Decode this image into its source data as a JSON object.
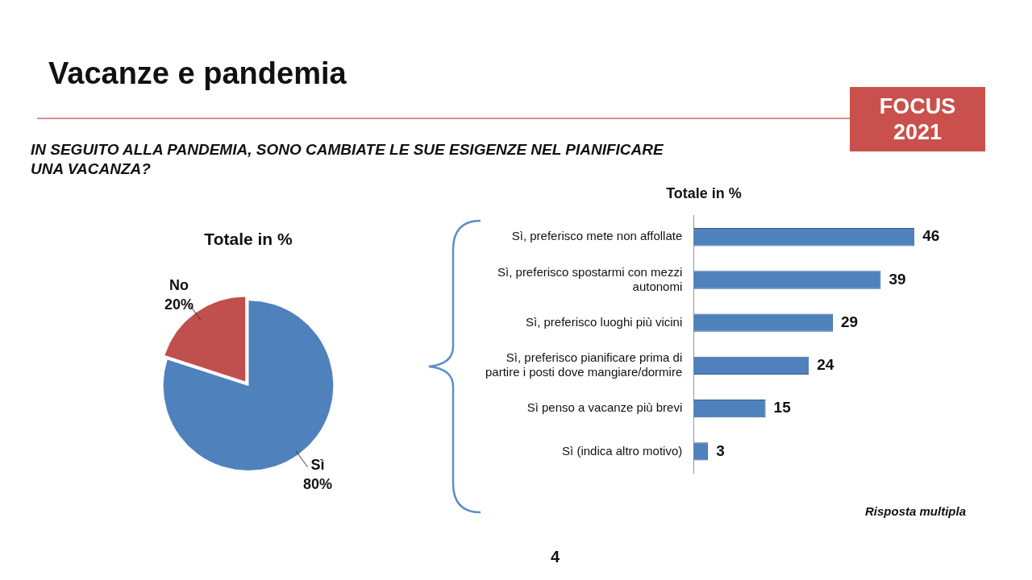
{
  "chart_data": [
    {
      "type": "other",
      "title": "Vacanze e pandemia",
      "subtitle": "IN SEGUITO ALLA PANDEMIA, SONO CAMBIATE LE SUE ESIGENZE NEL PIANIFICARE UNA VACANZA?",
      "annotations": [
        "FOCUS 2021",
        "4"
      ]
    },
    {
      "type": "pie",
      "title": "Totale in %",
      "categories": [
        "No",
        "Sì"
      ],
      "values": [
        20,
        80
      ],
      "colors": [
        "#c0504d",
        "#4f81bd"
      ],
      "value_labels": [
        "20%",
        "80%"
      ]
    },
    {
      "type": "bar",
      "orientation": "horizontal",
      "title": "Totale in %",
      "categories": [
        "Sì, preferisco mete non affollate",
        "Sì, preferisco spostarmi con mezzi autonomi",
        "Sì, preferisco luoghi più vicini",
        "Sì, preferisco pianificare prima di partire i posti dove mangiare/dormire",
        "Sì penso a vacanze più brevi",
        "Sì (indica altro motivo)"
      ],
      "values": [
        46,
        39,
        29,
        24,
        15,
        3
      ],
      "color": "#4f81bd",
      "data_labels": true,
      "annotations": [
        "Risposta multipla"
      ]
    }
  ]
}
